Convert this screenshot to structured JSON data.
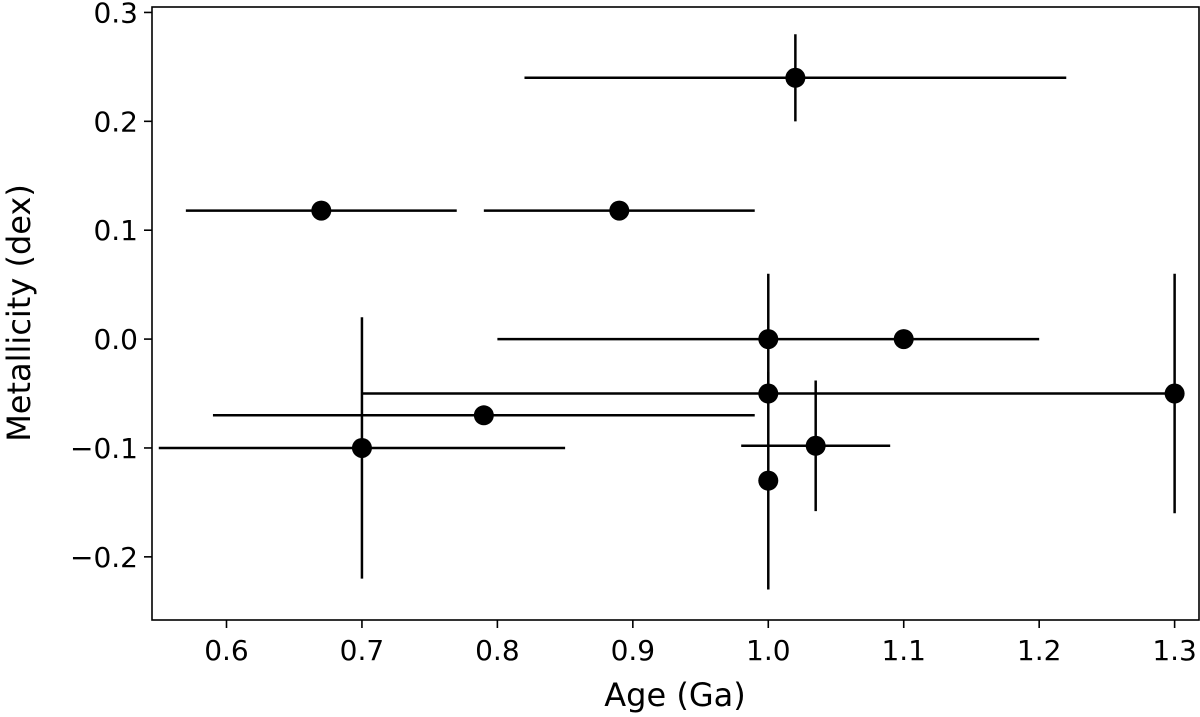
{
  "chart_data": {
    "type": "scatter",
    "title": "",
    "xlabel": "Age (Ga)",
    "ylabel": "Metallicity (dex)",
    "xlim": [
      0.545,
      1.318
    ],
    "ylim": [
      -0.258,
      0.305
    ],
    "grid": false,
    "marker_color": "#000000",
    "xticks": [
      0.6,
      0.7,
      0.8,
      0.9,
      1.0,
      1.1,
      1.2,
      1.3
    ],
    "xtick_labels": [
      "0.6",
      "0.7",
      "0.8",
      "0.9",
      "1.0",
      "1.1",
      "1.2",
      "1.3"
    ],
    "yticks": [
      -0.2,
      -0.1,
      0.0,
      0.1,
      0.2,
      0.3
    ],
    "ytick_labels": [
      "−0.2",
      "−0.1",
      "0.0",
      "0.1",
      "0.2",
      "0.3"
    ],
    "points": [
      {
        "x": 1.02,
        "y": 0.24,
        "xerr": [
          0.2,
          0.2
        ],
        "yerr": [
          0.04,
          0.04
        ]
      },
      {
        "x": 0.67,
        "y": 0.118,
        "xerr": [
          0.1,
          0.1
        ],
        "yerr": null
      },
      {
        "x": 0.89,
        "y": 0.118,
        "xerr": [
          0.1,
          0.1
        ],
        "yerr": null
      },
      {
        "x": 1.0,
        "y": 0.0,
        "xerr": [
          0.2,
          0.2
        ],
        "yerr": [
          0.06,
          0.06
        ]
      },
      {
        "x": 1.1,
        "y": 0.0,
        "xerr": null,
        "yerr": null
      },
      {
        "x": 1.0,
        "y": -0.05,
        "xerr": null,
        "yerr": null
      },
      {
        "x": 1.3,
        "y": -0.05,
        "xerr": [
          0.6,
          0.0
        ],
        "yerr": [
          0.11,
          0.11
        ]
      },
      {
        "x": 0.79,
        "y": -0.07,
        "xerr": [
          0.2,
          0.2
        ],
        "yerr": null
      },
      {
        "x": 0.7,
        "y": -0.1,
        "xerr": [
          0.15,
          0.15
        ],
        "yerr": [
          0.12,
          0.12
        ]
      },
      {
        "x": 1.035,
        "y": -0.098,
        "xerr": [
          0.055,
          0.055
        ],
        "yerr": [
          0.06,
          0.06
        ]
      },
      {
        "x": 1.0,
        "y": -0.13,
        "xerr": null,
        "yerr": [
          0.1,
          0.1
        ]
      }
    ]
  }
}
